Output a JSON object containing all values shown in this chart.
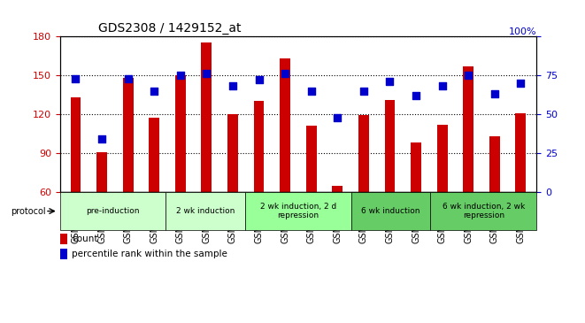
{
  "title": "GDS2308 / 1429152_at",
  "samples": [
    "GSM76329",
    "GSM76330",
    "GSM76331",
    "GSM76332",
    "GSM76333",
    "GSM76334",
    "GSM76335",
    "GSM76336",
    "GSM76337",
    "GSM76338",
    "GSM76339",
    "GSM76340",
    "GSM76341",
    "GSM76342",
    "GSM76343",
    "GSM76344",
    "GSM76345",
    "GSM76346"
  ],
  "bar_values": [
    133,
    91,
    148,
    117,
    150,
    175,
    120,
    130,
    163,
    111,
    65,
    119,
    131,
    98,
    112,
    157,
    103,
    121
  ],
  "dot_values": [
    73,
    34,
    73,
    65,
    75,
    76,
    68,
    72,
    76,
    65,
    48,
    65,
    71,
    62,
    68,
    75,
    63,
    70
  ],
  "ylim_left": [
    60,
    180
  ],
  "ylim_right": [
    0,
    100
  ],
  "yticks_left": [
    60,
    90,
    120,
    150,
    180
  ],
  "yticks_right": [
    0,
    25,
    50,
    75,
    100
  ],
  "bar_color": "#cc0000",
  "dot_color": "#0000cc",
  "bg_color": "#ffffff",
  "protocol_groups": [
    {
      "label": "pre-induction",
      "start": 0,
      "end": 3,
      "color": "#ccffcc"
    },
    {
      "label": "2 wk induction",
      "start": 4,
      "end": 6,
      "color": "#ccffcc"
    },
    {
      "label": "2 wk induction, 2 d\nrepression",
      "start": 7,
      "end": 10,
      "color": "#99ff99"
    },
    {
      "label": "6 wk induction",
      "start": 11,
      "end": 13,
      "color": "#66cc66"
    },
    {
      "label": "6 wk induction, 2 wk\nrepression",
      "start": 14,
      "end": 17,
      "color": "#66cc66"
    }
  ],
  "legend_count_color": "#cc0000",
  "legend_dot_color": "#0000cc",
  "tick_label_color_left": "#cc0000",
  "tick_label_color_right": "#0000cc",
  "bar_width": 0.4,
  "dot_size": 40
}
